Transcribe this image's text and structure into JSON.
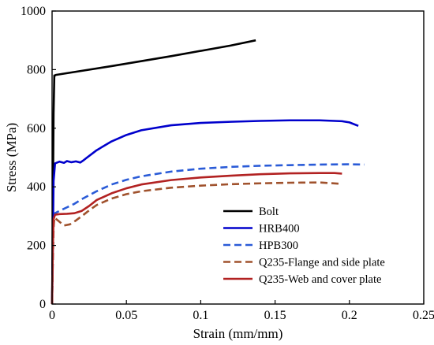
{
  "chart_data": {
    "type": "line",
    "title": "",
    "xlabel": "Strain (mm/mm)",
    "ylabel": "Stress (MPa)",
    "xlim": [
      0,
      0.25
    ],
    "ylim": [
      0,
      1000
    ],
    "xticks": [
      0,
      0.05,
      0.1,
      0.15,
      0.2,
      0.25
    ],
    "xtick_labels": [
      "0",
      "0.05",
      "0.1",
      "0.15",
      "0.2",
      "0.25"
    ],
    "yticks": [
      0,
      200,
      400,
      600,
      800,
      1000
    ],
    "ytick_labels": [
      "0",
      "200",
      "400",
      "600",
      "800",
      "1000"
    ],
    "grid": false,
    "legend_position": "bottom-right",
    "series": [
      {
        "name": "Bolt",
        "color": "#000000",
        "dash": "solid",
        "x": [
          0,
          0.0005,
          0.001,
          0.0015,
          0.002,
          0.0025,
          0.04,
          0.08,
          0.12,
          0.137
        ],
        "y": [
          0,
          300,
          650,
          780,
          780,
          782,
          812,
          846,
          882,
          900
        ]
      },
      {
        "name": "HRB400",
        "color": "#0000cc",
        "dash": "solid",
        "x": [
          0,
          0.0005,
          0.001,
          0.002,
          0.005,
          0.008,
          0.01,
          0.013,
          0.016,
          0.019,
          0.021,
          0.023,
          0.03,
          0.04,
          0.05,
          0.06,
          0.08,
          0.1,
          0.12,
          0.14,
          0.16,
          0.18,
          0.195,
          0.2,
          0.206
        ],
        "y": [
          0,
          200,
          420,
          480,
          486,
          482,
          488,
          484,
          487,
          483,
          490,
          498,
          525,
          555,
          577,
          593,
          610,
          618,
          622,
          625,
          627,
          627,
          624,
          620,
          608
        ]
      },
      {
        "name": "HPB300",
        "color": "#2a5bd7",
        "dash": "dashed",
        "x": [
          0,
          0.0005,
          0.001,
          0.002,
          0.005,
          0.01,
          0.015,
          0.02,
          0.03,
          0.04,
          0.05,
          0.06,
          0.08,
          0.1,
          0.12,
          0.14,
          0.16,
          0.18,
          0.2,
          0.21
        ],
        "y": [
          0,
          150,
          280,
          310,
          318,
          330,
          342,
          358,
          385,
          408,
          424,
          436,
          452,
          462,
          468,
          472,
          474,
          476,
          477,
          476
        ]
      },
      {
        "name": "Q235-Flange and side plate",
        "color": "#a0522d",
        "dash": "dashed",
        "x": [
          0,
          0.0005,
          0.001,
          0.0015,
          0.004,
          0.008,
          0.012,
          0.016,
          0.02,
          0.025,
          0.03,
          0.04,
          0.05,
          0.06,
          0.08,
          0.1,
          0.12,
          0.14,
          0.16,
          0.18,
          0.195
        ],
        "y": [
          0,
          150,
          260,
          295,
          285,
          268,
          272,
          285,
          300,
          320,
          338,
          360,
          375,
          385,
          397,
          404,
          409,
          412,
          414,
          415,
          410
        ]
      },
      {
        "name": "Q235-Web and cover plate",
        "color": "#b22222",
        "dash": "solid",
        "x": [
          0,
          0.0005,
          0.001,
          0.002,
          0.005,
          0.01,
          0.015,
          0.02,
          0.025,
          0.03,
          0.04,
          0.05,
          0.06,
          0.08,
          0.1,
          0.12,
          0.14,
          0.16,
          0.18,
          0.19,
          0.195
        ],
        "y": [
          0,
          180,
          290,
          305,
          307,
          308,
          310,
          318,
          335,
          355,
          378,
          395,
          408,
          423,
          432,
          438,
          443,
          446,
          447,
          447,
          445
        ]
      }
    ]
  }
}
